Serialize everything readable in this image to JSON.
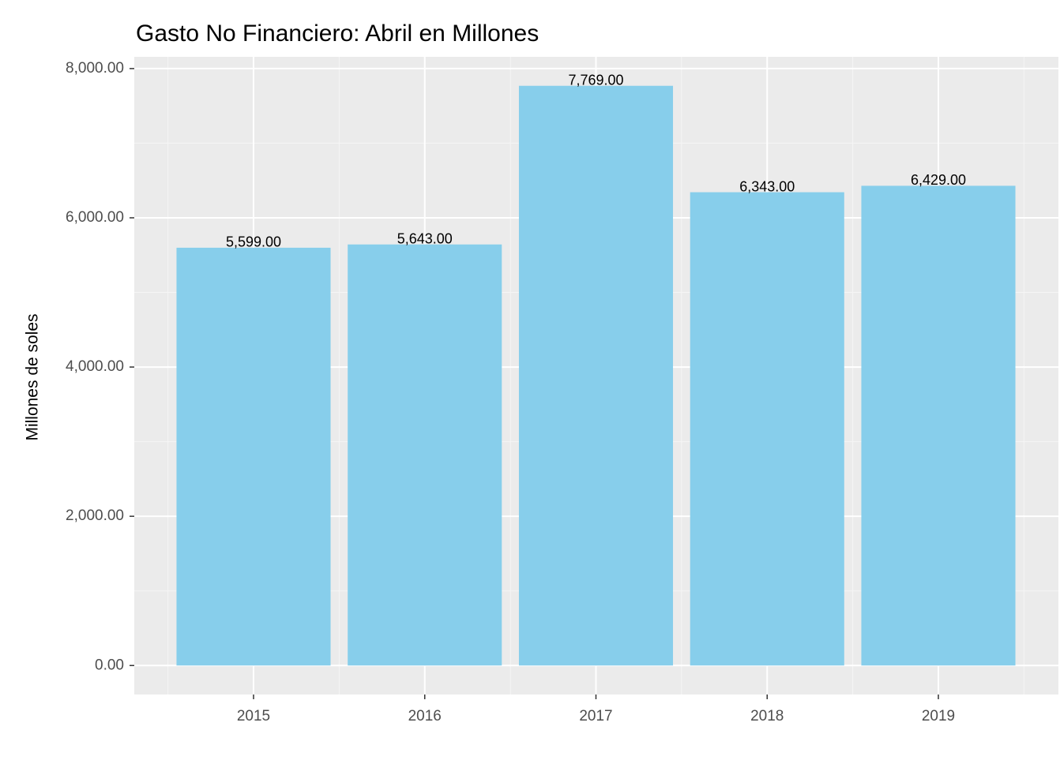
{
  "chart_data": {
    "type": "bar",
    "title": "Gasto No Financiero:  Abril  en Millones",
    "y_label": "Millones de soles",
    "categories": [
      "2015",
      "2016",
      "2017",
      "2018",
      "2019"
    ],
    "values": [
      5599,
      5643,
      7769,
      6343,
      6429
    ],
    "value_labels": [
      "5,599.00",
      "5,643.00",
      "7,769.00",
      "6,343.00",
      "6,429.00"
    ],
    "color": "#87ceeb",
    "ylim": [
      -388.45,
      8157.45
    ],
    "yticks": [
      {
        "value": 0,
        "label": "0.00"
      },
      {
        "value": 2000,
        "label": "2,000.00"
      },
      {
        "value": 4000,
        "label": "4,000.00"
      },
      {
        "value": 6000,
        "label": "6,000.00"
      },
      {
        "value": 8000,
        "label": "8,000.00"
      }
    ],
    "grid": true
  }
}
